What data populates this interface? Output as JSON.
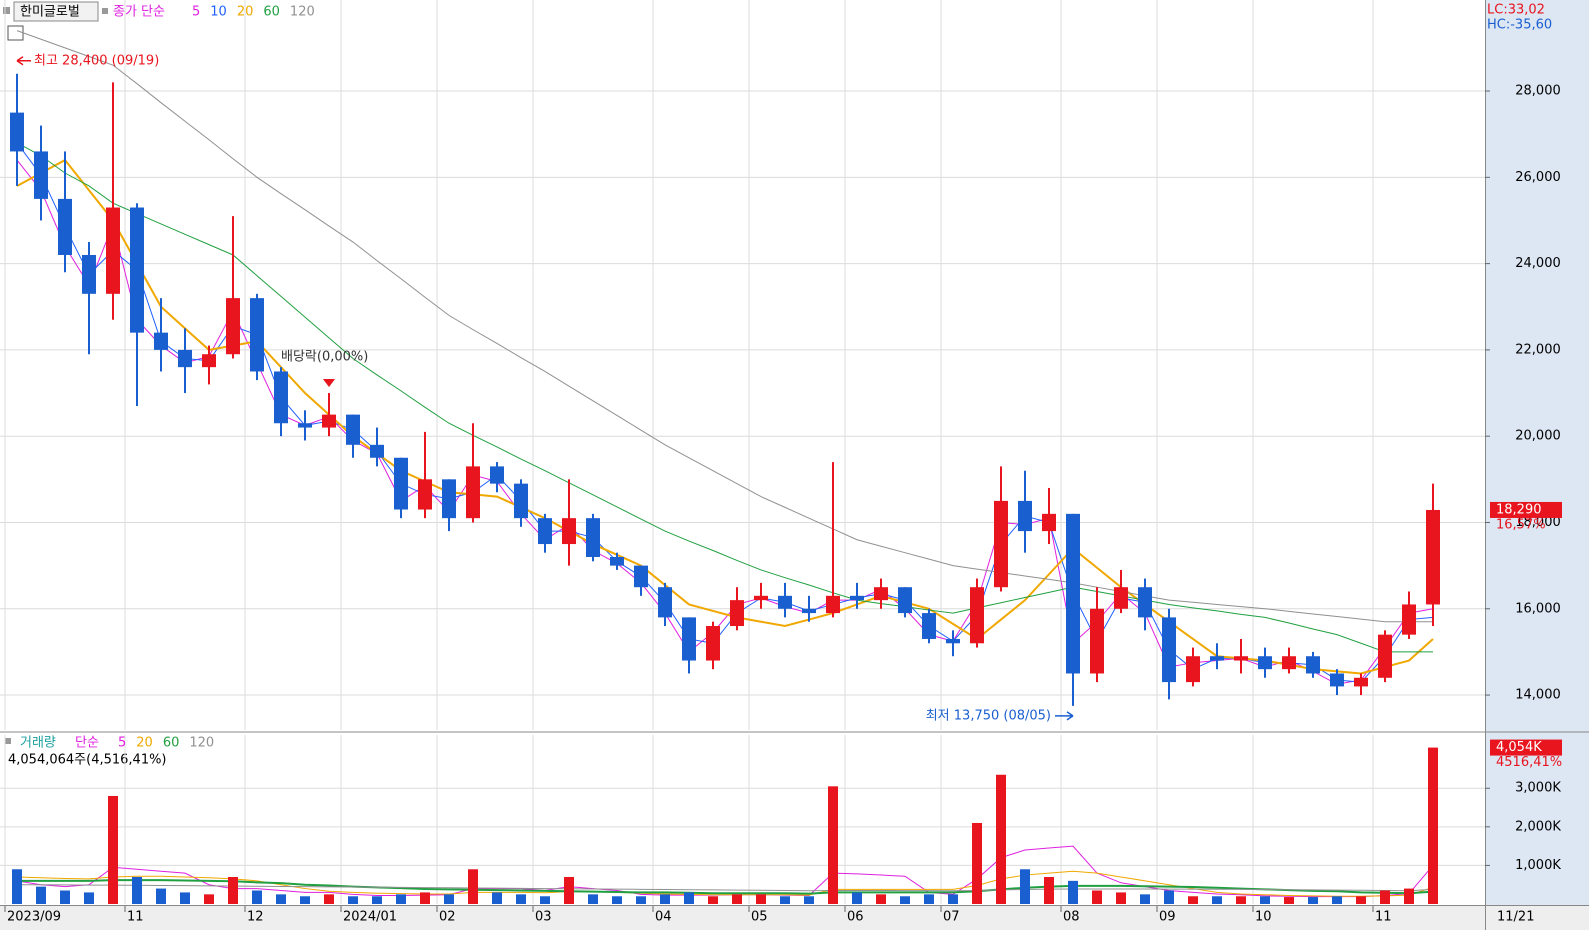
{
  "chart_data": [
    {
      "type": "candlestick",
      "title": "한미글로벌",
      "ma_label": "종가 단순",
      "lc_label": "LC:33,02",
      "hc_label": "HC:-35,60",
      "end_date": "11/21",
      "annotations": [
        "최고 28,400 (09/19)",
        "최저 13,750 (08/05)",
        "배당락(0,00%)"
      ],
      "up_color": "#e8141e",
      "down_color": "#1a5fd0",
      "grid": true,
      "categories": [
        "2023/09",
        null,
        null,
        null,
        null,
        "11",
        null,
        null,
        null,
        null,
        "12",
        null,
        null,
        null,
        "2024/01",
        null,
        null,
        null,
        "02",
        null,
        null,
        null,
        "03",
        null,
        null,
        null,
        null,
        "04",
        null,
        null,
        null,
        "05",
        null,
        null,
        null,
        "06",
        null,
        null,
        null,
        "07",
        null,
        null,
        null,
        null,
        "08",
        null,
        null,
        null,
        "09",
        null,
        null,
        null,
        "10",
        null,
        null,
        null,
        null,
        "11",
        null,
        null
      ],
      "open": [
        27500,
        26600,
        25500,
        24200,
        23300,
        25300,
        22400,
        22000,
        21600,
        21900,
        23200,
        21500,
        20300,
        20200,
        20500,
        19800,
        19500,
        18300,
        19000,
        18100,
        19300,
        18900,
        18100,
        17500,
        18100,
        17200,
        17000,
        16500,
        15800,
        14800,
        15600,
        16200,
        16300,
        16000,
        15900,
        16300,
        16200,
        16500,
        15900,
        15300,
        15200,
        16500,
        18500,
        17800,
        18200,
        14500,
        16000,
        16500,
        15800,
        14300,
        14900,
        14800,
        14900,
        14600,
        14900,
        14500,
        14200,
        14400,
        15400,
        16100
      ],
      "high": [
        28400,
        27200,
        26600,
        24500,
        28200,
        25400,
        23200,
        22500,
        22100,
        25100,
        23300,
        21600,
        20600,
        21000,
        20500,
        20200,
        19500,
        20100,
        19000,
        20300,
        19400,
        19000,
        18200,
        19000,
        18200,
        17300,
        17000,
        16600,
        15800,
        15700,
        16500,
        16600,
        16600,
        16300,
        19400,
        16600,
        16700,
        16500,
        16000,
        15500,
        16700,
        19300,
        19200,
        18800,
        18200,
        16500,
        16900,
        16700,
        16000,
        15100,
        15200,
        15300,
        15100,
        15100,
        15000,
        14600,
        14500,
        15500,
        16400,
        18900
      ],
      "low": [
        25800,
        25000,
        23800,
        21900,
        22700,
        20700,
        21500,
        21000,
        21200,
        21800,
        21300,
        20000,
        19900,
        20000,
        19500,
        19300,
        18100,
        18100,
        17800,
        18000,
        18700,
        17900,
        17300,
        17000,
        17100,
        16900,
        16300,
        15600,
        14500,
        14600,
        15500,
        16000,
        15800,
        15700,
        15800,
        16000,
        16000,
        15800,
        15200,
        14900,
        15100,
        16400,
        17300,
        17500,
        13750,
        14300,
        15900,
        15500,
        13900,
        14200,
        14600,
        14500,
        14400,
        14500,
        14400,
        14000,
        14000,
        14300,
        15300,
        15600
      ],
      "close": [
        26600,
        25500,
        24200,
        23300,
        25300,
        22400,
        22000,
        21600,
        21900,
        23200,
        21500,
        20300,
        20200,
        20500,
        19800,
        19500,
        18300,
        19000,
        18100,
        19300,
        18900,
        18100,
        17500,
        18100,
        17200,
        17000,
        16500,
        15800,
        14800,
        15600,
        16200,
        16300,
        16000,
        15900,
        16300,
        16200,
        16500,
        15900,
        15300,
        15200,
        16500,
        18500,
        17800,
        18200,
        14500,
        16000,
        16500,
        15800,
        14300,
        14900,
        14800,
        14900,
        14600,
        14900,
        14500,
        14200,
        14400,
        15400,
        16100,
        18290
      ],
      "value_labels": [
        null,
        null,
        null,
        null,
        null,
        null,
        null,
        null,
        null,
        null,
        null,
        null,
        null,
        null,
        null,
        null,
        null,
        null,
        null,
        null,
        null,
        null,
        null,
        null,
        null,
        null,
        null,
        null,
        null,
        null,
        null,
        null,
        null,
        null,
        null,
        null,
        null,
        null,
        null,
        null,
        null,
        null,
        null,
        null,
        null,
        null,
        null,
        null,
        null,
        null,
        null,
        null,
        null,
        null,
        null,
        null,
        null,
        null,
        null,
        "18,290"
      ],
      "change_label": "16,57%",
      "series": [
        {
          "name": "5",
          "color": "#e020e0",
          "values": [
            26400,
            25700,
            24400,
            23500,
            24900,
            22700,
            22100,
            21700,
            21850,
            22900,
            21700,
            20500,
            20250,
            20450,
            19900,
            19600,
            18500,
            18850,
            18250,
            19100,
            18950,
            18200,
            17600,
            17950,
            17350,
            17050,
            16600,
            15900,
            15000,
            15450,
            16100,
            16250,
            16050,
            15900,
            16200,
            16200,
            16450,
            16000,
            15400,
            15250,
            16150,
            18000,
            17950,
            18100,
            15200,
            15700,
            16350,
            15900,
            14650,
            14750,
            14800,
            14850,
            14650,
            14800,
            14550,
            14250,
            14350,
            15100,
            15900,
            16000
          ]
        },
        {
          "name": "10",
          "color": "#2060ff",
          "values": [
            26800,
            26050,
            24850,
            23750,
            24300,
            23850,
            22200,
            21800,
            21750,
            22550,
            22350,
            20900,
            20250,
            20350,
            20150,
            19650,
            18900,
            18650,
            18550,
            18700,
            19100,
            18500,
            17800,
            17800,
            17650,
            17100,
            16750,
            16150,
            15300,
            15200,
            15900,
            16250,
            16150,
            15950,
            16100,
            16250,
            16350,
            16200,
            15600,
            15250,
            15850,
            17500,
            18150,
            18000,
            16350,
            15250,
            16250,
            16150,
            15050,
            14600,
            14850,
            14850,
            14750,
            14750,
            14700,
            14350,
            14300,
            14900,
            15750,
            15800
          ]
        },
        {
          "name": "20",
          "color": "#f0a800",
          "values": [
            25800,
            26100,
            26400,
            25700,
            25000,
            24000,
            23000,
            22500,
            22000,
            22100,
            22200,
            21600,
            21000,
            20500,
            20000,
            19600,
            19200,
            18950,
            18700,
            18650,
            18600,
            18350,
            18100,
            17800,
            17500,
            17250,
            17000,
            16550,
            16100,
            15950,
            15800,
            15700,
            15600,
            15750,
            15900,
            16100,
            16300,
            16150,
            16000,
            15650,
            15300,
            15750,
            16200,
            16800,
            17400,
            16950,
            16500,
            16100,
            15700,
            15300,
            14900,
            14850,
            14800,
            14700,
            14600,
            14550,
            14500,
            14650,
            14800,
            15300
          ]
        },
        {
          "name": "60",
          "color": "#20a040",
          "values": [
            26800,
            26500,
            26100,
            25800,
            25400,
            25160,
            24920,
            24680,
            24440,
            24200,
            23720,
            23240,
            22760,
            22280,
            21800,
            21420,
            21050,
            20670,
            20300,
            20020,
            19750,
            19470,
            19200,
            18920,
            18640,
            18360,
            18080,
            17800,
            17570,
            17350,
            17120,
            16900,
            16720,
            16550,
            16370,
            16200,
            16120,
            16050,
            15970,
            15900,
            16020,
            16140,
            16260,
            16380,
            16500,
            16400,
            16300,
            16200,
            16100,
            16020,
            15950,
            15870,
            15800,
            15670,
            15530,
            15400,
            15200,
            15000,
            15000,
            15000
          ]
        },
        {
          "name": "120",
          "color": "#909090",
          "values": [
            29400,
            29200,
            29000,
            28800,
            28600,
            28170,
            27730,
            27300,
            26870,
            26430,
            26000,
            25620,
            25250,
            24870,
            24500,
            24070,
            23650,
            23220,
            22800,
            22470,
            22150,
            21820,
            21500,
            21160,
            20820,
            20480,
            20140,
            19800,
            19500,
            19200,
            18900,
            18600,
            18350,
            18100,
            17850,
            17600,
            17450,
            17300,
            17150,
            17000,
            16920,
            16840,
            16760,
            16680,
            16600,
            16500,
            16400,
            16300,
            16200,
            16150,
            16100,
            16050,
            16000,
            15940,
            15880,
            15820,
            15760,
            15700,
            15700,
            15700
          ]
        }
      ],
      "ylim": [
        13190,
        30110
      ],
      "yticks": [
        {
          "value": 14000,
          "label": "14,000"
        },
        {
          "value": 16000,
          "label": "16,000"
        },
        {
          "value": 18000,
          "label": "18,000"
        },
        {
          "value": 20000,
          "label": "20,000"
        },
        {
          "value": 22000,
          "label": "22,000"
        },
        {
          "value": 24000,
          "label": "24,000"
        },
        {
          "value": 26000,
          "label": "26,000"
        },
        {
          "value": 28000,
          "label": "28,000"
        }
      ]
    },
    {
      "type": "bar",
      "title": "거래량",
      "ma_label": "단순",
      "summary": "4,054,064주(4,516,41%)",
      "values": [
        900,
        450,
        350,
        300,
        2800,
        700,
        400,
        300,
        250,
        700,
        350,
        250,
        200,
        250,
        200,
        200,
        250,
        300,
        250,
        900,
        300,
        250,
        200,
        700,
        250,
        200,
        200,
        250,
        300,
        200,
        250,
        250,
        200,
        200,
        3050,
        300,
        250,
        200,
        250,
        250,
        2100,
        3350,
        900,
        700,
        600,
        350,
        300,
        250,
        350,
        200,
        200,
        200,
        200,
        180,
        180,
        200,
        200,
        350,
        400,
        4054
      ],
      "value_labels": [
        null,
        null,
        null,
        null,
        null,
        null,
        null,
        null,
        null,
        null,
        null,
        null,
        null,
        null,
        null,
        null,
        null,
        null,
        null,
        null,
        null,
        null,
        null,
        null,
        null,
        null,
        null,
        null,
        null,
        null,
        null,
        null,
        null,
        null,
        null,
        null,
        null,
        null,
        null,
        null,
        null,
        null,
        null,
        null,
        null,
        null,
        null,
        null,
        null,
        null,
        null,
        null,
        null,
        null,
        null,
        null,
        null,
        null,
        null,
        "4,054K"
      ],
      "change_label": "4516,41%",
      "series": [
        {
          "name": "5",
          "color": "#e020e0",
          "values": [
            600,
            500,
            450,
            500,
            950,
            900,
            850,
            800,
            500,
            400,
            400,
            350,
            300,
            300,
            250,
            220,
            220,
            230,
            240,
            400,
            400,
            400,
            350,
            450,
            400,
            350,
            250,
            230,
            230,
            230,
            240,
            240,
            230,
            220,
            800,
            780,
            750,
            720,
            300,
            250,
            650,
            1200,
            1400,
            1450,
            1500,
            800,
            550,
            450,
            350,
            300,
            260,
            240,
            210,
            200,
            190,
            190,
            190,
            220,
            270,
            1000
          ]
        },
        {
          "name": "20",
          "color": "#f0a800",
          "values": [
            700,
            680,
            660,
            650,
            700,
            720,
            720,
            700,
            680,
            650,
            600,
            500,
            400,
            330,
            300,
            280,
            270,
            260,
            260,
            300,
            300,
            300,
            290,
            320,
            320,
            300,
            280,
            260,
            250,
            240,
            240,
            240,
            240,
            230,
            380,
            380,
            380,
            380,
            380,
            380,
            480,
            650,
            750,
            800,
            850,
            800,
            700,
            600,
            500,
            400,
            300,
            260,
            240,
            220,
            210,
            200,
            200,
            210,
            230,
            430
          ]
        },
        {
          "name": "60",
          "color": "#20a040",
          "values": [
            600,
            600,
            600,
            600,
            620,
            620,
            620,
            610,
            600,
            590,
            560,
            540,
            500,
            480,
            450,
            430,
            410,
            390,
            380,
            370,
            360,
            350,
            340,
            330,
            320,
            310,
            300,
            300,
            290,
            280,
            280,
            280,
            280,
            270,
            300,
            300,
            300,
            300,
            300,
            300,
            330,
            380,
            420,
            450,
            470,
            470,
            470,
            460,
            450,
            440,
            420,
            400,
            380,
            360,
            340,
            330,
            300,
            290,
            280,
            320
          ]
        },
        {
          "name": "120",
          "color": "#909090",
          "values": [
            500,
            500,
            495,
            490,
            490,
            485,
            480,
            475,
            470,
            465,
            460,
            455,
            450,
            445,
            440,
            435,
            430,
            425,
            420,
            415,
            410,
            405,
            400,
            395,
            390,
            385,
            380,
            375,
            370,
            365,
            360,
            355,
            350,
            345,
            350,
            350,
            350,
            348,
            346,
            344,
            350,
            365,
            375,
            385,
            390,
            390,
            390,
            388,
            386,
            384,
            382,
            380,
            375,
            370,
            365,
            360,
            355,
            350,
            345,
            380
          ]
        }
      ],
      "ylim": [
        0,
        4380
      ],
      "yticks": [
        {
          "value": 1000,
          "label": "1,000K"
        },
        {
          "value": 2000,
          "label": "2,000K"
        },
        {
          "value": 3000,
          "label": "3,000K"
        }
      ]
    }
  ]
}
